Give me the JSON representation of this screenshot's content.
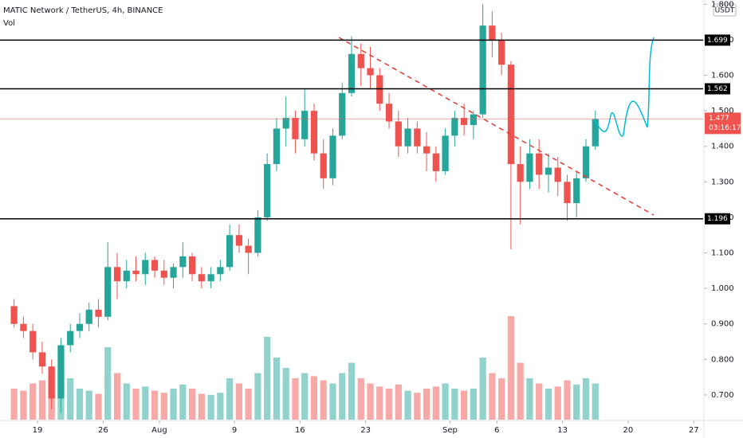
{
  "header": {
    "symbol": "MATIC Network / TetherUS, 4h, BINANCE",
    "indicator": "Vol",
    "currency": "USDT"
  },
  "chart_data": {
    "type": "candlestick",
    "x": [
      "Jul 16",
      "Jul 17",
      "Jul 18",
      "Jul 19",
      "Jul 20",
      "Jul 21",
      "Jul 22",
      "Jul 23",
      "Jul 24",
      "Jul 25",
      "Jul 26",
      "Jul 27",
      "Jul 28",
      "Jul 29",
      "Jul 30",
      "Jul 31",
      "Aug 1",
      "Aug 2",
      "Aug 3",
      "Aug 4",
      "Aug 5",
      "Aug 6",
      "Aug 7",
      "Aug 8",
      "Aug 9",
      "Aug 10",
      "Aug 11",
      "Aug 12",
      "Aug 13",
      "Aug 14",
      "Aug 15",
      "Aug 16",
      "Aug 17",
      "Aug 18",
      "Aug 19",
      "Aug 20",
      "Aug 21",
      "Aug 22",
      "Aug 23",
      "Aug 24",
      "Aug 25",
      "Aug 26",
      "Aug 27",
      "Aug 28",
      "Aug 29",
      "Aug 30",
      "Aug 31",
      "Sep 1",
      "Sep 2",
      "Sep 3",
      "Sep 4",
      "Sep 5",
      "Sep 6",
      "Sep 7",
      "Sep 8",
      "Sep 9",
      "Sep 10",
      "Sep 11",
      "Sep 12",
      "Sep 13",
      "Sep 14",
      "Sep 15",
      "Sep 16"
    ],
    "open": [
      0.95,
      0.9,
      0.88,
      0.82,
      0.78,
      0.69,
      0.84,
      0.88,
      0.9,
      0.94,
      0.92,
      1.06,
      1.02,
      1.05,
      1.04,
      1.08,
      1.05,
      1.03,
      1.06,
      1.09,
      1.04,
      1.02,
      1.04,
      1.06,
      1.15,
      1.12,
      1.1,
      1.2,
      1.35,
      1.45,
      1.48,
      1.42,
      1.5,
      1.38,
      1.31,
      1.43,
      1.55,
      1.66,
      1.62,
      1.6,
      1.52,
      1.47,
      1.4,
      1.45,
      1.4,
      1.38,
      1.33,
      1.43,
      1.48,
      1.46,
      1.49,
      1.74,
      1.7,
      1.63,
      1.35,
      1.3,
      1.38,
      1.32,
      1.34,
      1.3,
      1.24,
      1.31,
      1.4
    ],
    "high": [
      0.97,
      0.92,
      0.9,
      0.85,
      0.8,
      0.86,
      0.9,
      0.93,
      0.96,
      0.97,
      1.13,
      1.1,
      1.08,
      1.09,
      1.1,
      1.09,
      1.08,
      1.07,
      1.13,
      1.1,
      1.06,
      1.06,
      1.08,
      1.18,
      1.18,
      1.14,
      1.22,
      1.38,
      1.48,
      1.54,
      1.5,
      1.56,
      1.52,
      1.42,
      1.45,
      1.58,
      1.71,
      1.69,
      1.68,
      1.62,
      1.55,
      1.5,
      1.48,
      1.47,
      1.44,
      1.4,
      1.45,
      1.5,
      1.52,
      1.5,
      1.8,
      1.78,
      1.72,
      1.64,
      1.4,
      1.42,
      1.42,
      1.38,
      1.37,
      1.32,
      1.33,
      1.42,
      1.5
    ],
    "low": [
      0.89,
      0.86,
      0.8,
      0.76,
      0.66,
      0.65,
      0.82,
      0.86,
      0.88,
      0.89,
      0.91,
      0.97,
      1.0,
      1.02,
      1.01,
      1.03,
      1.01,
      1.0,
      1.03,
      1.02,
      1.0,
      1.0,
      1.02,
      1.05,
      1.1,
      1.04,
      1.09,
      1.19,
      1.33,
      1.4,
      1.38,
      1.4,
      1.36,
      1.28,
      1.29,
      1.42,
      1.54,
      1.57,
      1.56,
      1.5,
      1.45,
      1.37,
      1.38,
      1.38,
      1.33,
      1.3,
      1.32,
      1.4,
      1.43,
      1.42,
      1.48,
      1.65,
      1.6,
      1.11,
      1.18,
      1.28,
      1.28,
      1.27,
      1.26,
      1.19,
      1.2,
      1.3,
      1.39
    ],
    "close": [
      0.9,
      0.88,
      0.82,
      0.78,
      0.69,
      0.84,
      0.88,
      0.9,
      0.94,
      0.92,
      1.06,
      1.02,
      1.05,
      1.04,
      1.08,
      1.05,
      1.03,
      1.06,
      1.09,
      1.04,
      1.02,
      1.04,
      1.06,
      1.15,
      1.12,
      1.1,
      1.2,
      1.35,
      1.45,
      1.48,
      1.42,
      1.5,
      1.38,
      1.31,
      1.43,
      1.55,
      1.66,
      1.62,
      1.6,
      1.52,
      1.47,
      1.4,
      1.45,
      1.4,
      1.38,
      1.33,
      1.43,
      1.48,
      1.46,
      1.49,
      1.74,
      1.7,
      1.63,
      1.35,
      1.3,
      1.38,
      1.32,
      1.34,
      1.3,
      1.24,
      1.31,
      1.4,
      1.477
    ],
    "volume": [
      30,
      28,
      35,
      38,
      50,
      48,
      40,
      30,
      28,
      25,
      70,
      45,
      35,
      30,
      32,
      28,
      26,
      30,
      34,
      30,
      25,
      24,
      26,
      40,
      35,
      30,
      45,
      80,
      60,
      50,
      40,
      45,
      42,
      38,
      35,
      45,
      55,
      40,
      35,
      32,
      30,
      34,
      28,
      26,
      30,
      32,
      35,
      30,
      28,
      30,
      60,
      45,
      40,
      100,
      55,
      40,
      35,
      30,
      32,
      38,
      34,
      40,
      35
    ],
    "up_color": "#26a69a",
    "down_color": "#ef5350",
    "xlim": [
      "Jul 15",
      "Sep 28"
    ],
    "xticks": [
      {
        "value": "Jul 19",
        "label": "19"
      },
      {
        "value": "Jul 26",
        "label": "26"
      },
      {
        "value": "Aug 1",
        "label": "Aug"
      },
      {
        "value": "Aug 9",
        "label": "9"
      },
      {
        "value": "Aug 16",
        "label": "16"
      },
      {
        "value": "Aug 23",
        "label": "23"
      },
      {
        "value": "Sep 1",
        "label": "Sep"
      },
      {
        "value": "Sep 6",
        "label": "6"
      },
      {
        "value": "Sep 13",
        "label": "13"
      },
      {
        "value": "Sep 20",
        "label": "20"
      },
      {
        "value": "Sep 27",
        "label": "27"
      }
    ],
    "ylim": [
      0.628,
      1.812
    ],
    "yticks": [
      {
        "value": 0.7,
        "label": "0.700"
      },
      {
        "value": 0.8,
        "label": "0.800"
      },
      {
        "value": 0.9,
        "label": "0.900"
      },
      {
        "value": 1.0,
        "label": "1.000"
      },
      {
        "value": 1.1,
        "label": "1.100"
      },
      {
        "value": 1.2,
        "label": "1.200"
      },
      {
        "value": 1.3,
        "label": "1.300"
      },
      {
        "value": 1.4,
        "label": "1.400"
      },
      {
        "value": 1.5,
        "label": "1.500"
      },
      {
        "value": 1.6,
        "label": "1.600"
      },
      {
        "value": 1.7,
        "label": "1.700"
      },
      {
        "value": 1.8,
        "label": "1.800"
      }
    ],
    "levels": [
      {
        "value": 1.699,
        "label": "1.699"
      },
      {
        "value": 1.562,
        "label": "1.562"
      },
      {
        "value": 1.196,
        "label": "1.196"
      }
    ],
    "last_price": {
      "value": 1.477,
      "label": "1.477",
      "countdown": "03:16:17",
      "color": "#ef5350"
    }
  }
}
